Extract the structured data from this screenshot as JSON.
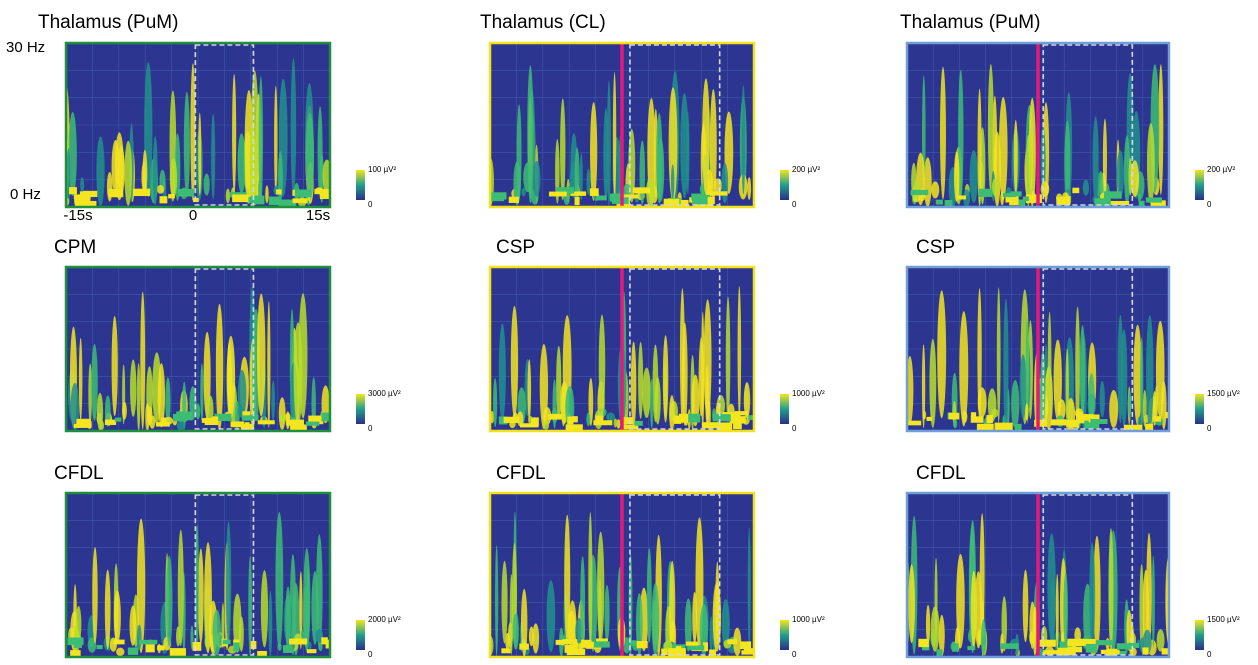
{
  "axis_labels": {
    "freq_top": "30 Hz",
    "freq_bottom": "0 Hz",
    "time_start": "-15s",
    "time_zero": "0",
    "time_end": "15s"
  },
  "columns": [
    {
      "border_color": "#1f8f3f",
      "stim_line": false,
      "panels": [
        {
          "title": "Thalamus (PuM)",
          "scale_max": "100 µV²",
          "scale_min": "0"
        },
        {
          "title": "CPM",
          "scale_max": "3000 µV²",
          "scale_min": "0"
        },
        {
          "title": "CFDL",
          "scale_max": "2000 µV²",
          "scale_min": "0"
        }
      ]
    },
    {
      "border_color": "#f2e21c",
      "stim_line": true,
      "panels": [
        {
          "title": "Thalamus (CL)",
          "scale_max": "200 µV²",
          "scale_min": "0"
        },
        {
          "title": "CSP",
          "scale_max": "1000 µV²",
          "scale_min": "0"
        },
        {
          "title": "CFDL",
          "scale_max": "1000 µV²",
          "scale_min": "0"
        }
      ]
    },
    {
      "border_color": "#6f9fd6",
      "stim_line": true,
      "panels": [
        {
          "title": "Thalamus (PuM)",
          "scale_max": "200 µV²",
          "scale_min": "0"
        },
        {
          "title": "CSP",
          "scale_max": "1500 µV²",
          "scale_min": "0"
        },
        {
          "title": "CFDL",
          "scale_max": "1500 µV²",
          "scale_min": "0"
        }
      ]
    }
  ]
}
